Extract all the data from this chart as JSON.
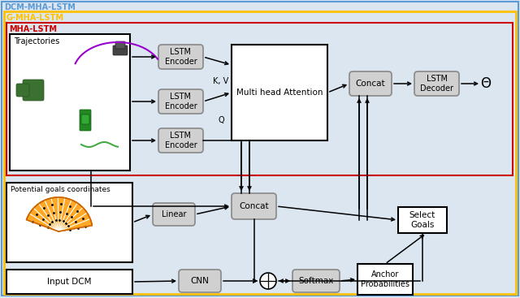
{
  "title_dcm": "DCM-MHA-LSTM",
  "title_gmha": "G-MHA-LSTM",
  "title_mha": "MHA-LSTM",
  "label_trajectories": "Trajectories",
  "label_potential_goals": "Potential goals coordinates",
  "label_input_dcm": "Input DCM",
  "label_lstm_enc1": "LSTM\nEncoder",
  "label_lstm_enc2": "LSTM\nEncoder",
  "label_lstm_enc3": "LSTM\nEncoder",
  "label_mha": "Multi head Attention",
  "label_concat_top": "Concat",
  "label_lstm_dec": "LSTM\nDecoder",
  "label_linear": "Linear",
  "label_concat_bot": "Concat",
  "label_select_goals": "Select\nGoals",
  "label_cnn": "CNN",
  "label_softmax": "Softmax",
  "label_anchor": "Anchor\nProbabilities",
  "label_kv": "K, V",
  "label_q": "Q",
  "label_theta": "Θ",
  "color_dcm_border": "#5b9bd5",
  "color_gmha_border": "#ffc000",
  "color_mha_border": "#cc0000",
  "color_box_gray_fill": "#d0d0d0",
  "color_box_gray_edge": "#888888",
  "color_box_white_fill": "#ffffff",
  "color_box_black_edge": "#000000",
  "bg_color": "#dce6f1"
}
